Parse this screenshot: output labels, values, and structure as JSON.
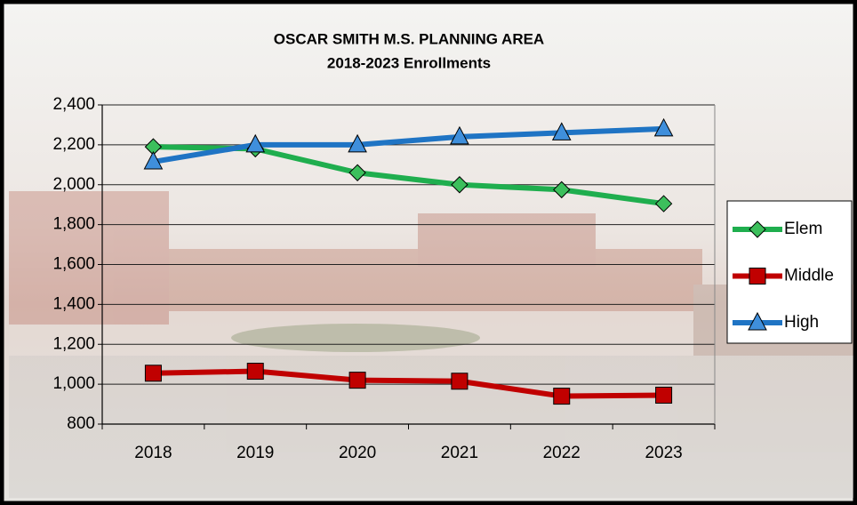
{
  "chart_data": {
    "type": "line",
    "title": "OSCAR SMITH M.S. PLANNING AREA",
    "subtitle": "2018-2023 Enrollments",
    "categories": [
      "2018",
      "2019",
      "2020",
      "2021",
      "2022",
      "2023"
    ],
    "series": [
      {
        "name": "Elem",
        "color": "#1fae4e",
        "marker": "diamond",
        "marker_color": "#3cbf5c",
        "values": [
          2190,
          2180,
          2060,
          2000,
          1975,
          1905
        ]
      },
      {
        "name": "Middle",
        "color": "#c00000",
        "marker": "square",
        "marker_color": "#c00000",
        "values": [
          1055,
          1065,
          1020,
          1015,
          940,
          945
        ]
      },
      {
        "name": "High",
        "color": "#1f74c4",
        "marker": "triangle",
        "marker_color": "#3f8fdc",
        "values": [
          2115,
          2200,
          2200,
          2240,
          2260,
          2280
        ]
      }
    ],
    "ylim": [
      800,
      2400
    ],
    "yticks": [
      800,
      {
        "value": 1000,
        "label": "1,000"
      },
      {
        "value": 1200,
        "label": "1,200"
      },
      {
        "value": 1400,
        "label": "1,400"
      },
      {
        "value": 1600,
        "label": "1,600"
      },
      {
        "value": 1800,
        "label": "1,800"
      },
      {
        "value": 2000,
        "label": "2,000"
      },
      {
        "value": 2200,
        "label": "2,200"
      },
      {
        "value": 2400,
        "label": "2,400"
      }
    ],
    "grid": true,
    "legend": "right"
  }
}
